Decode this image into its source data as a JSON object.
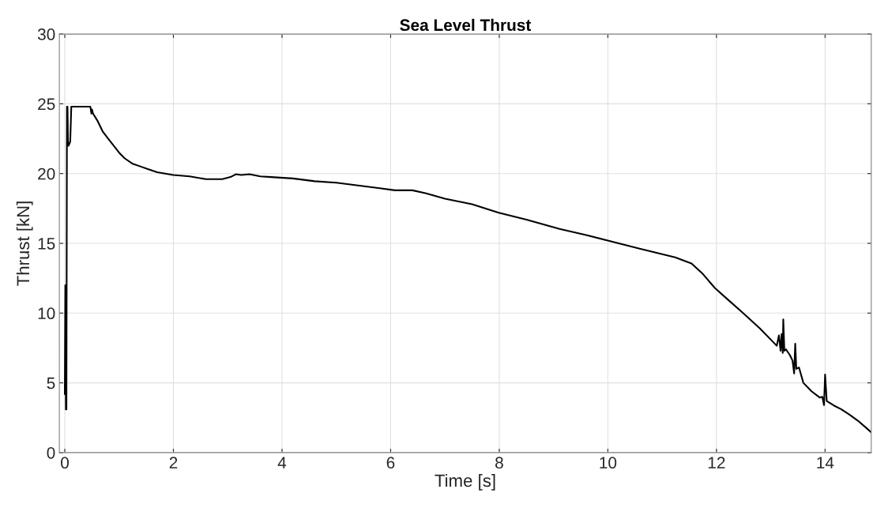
{
  "chart_data": {
    "type": "line",
    "title": "Sea Level Thrust",
    "xlabel": "Time [s]",
    "ylabel": "Thrust [kN]",
    "x": [
      0.0,
      0.01,
      0.02,
      0.025,
      0.03,
      0.04,
      0.05,
      0.06,
      0.07,
      0.1,
      0.12,
      0.14,
      0.3,
      0.47,
      0.49,
      0.5,
      0.52,
      0.6,
      0.7,
      0.8,
      0.9,
      1.0,
      1.1,
      1.25,
      1.4,
      1.55,
      1.7,
      1.85,
      2.0,
      2.3,
      2.6,
      2.9,
      3.05,
      3.15,
      3.25,
      3.4,
      3.6,
      3.8,
      4.2,
      4.6,
      5.0,
      5.4,
      5.8,
      6.08,
      6.4,
      6.64,
      7.0,
      7.5,
      7.99,
      8.5,
      9.11,
      9.6,
      10.0,
      10.6,
      11.24,
      11.54,
      11.75,
      11.97,
      12.2,
      12.47,
      12.8,
      13.11,
      13.15,
      13.18,
      13.2,
      13.22,
      13.23,
      13.25,
      13.28,
      13.35,
      13.4,
      13.43,
      13.45,
      13.47,
      13.52,
      13.6,
      13.75,
      13.9,
      13.95,
      13.97,
      13.98,
      14.0,
      14.03,
      14.16,
      14.3,
      14.45,
      14.6,
      14.75,
      14.85
    ],
    "series": [
      {
        "color": "#000000",
        "values": [
          4.2,
          12.0,
          3.1,
          10.0,
          3.1,
          24.8,
          24.8,
          22.0,
          22.0,
          22.3,
          24.8,
          24.8,
          24.8,
          24.8,
          24.3,
          24.6,
          24.3,
          23.8,
          23.0,
          22.5,
          22.0,
          21.5,
          21.1,
          20.7,
          20.5,
          20.3,
          20.1,
          20.0,
          19.9,
          19.8,
          19.6,
          19.6,
          19.75,
          19.95,
          19.9,
          19.95,
          19.8,
          19.75,
          19.65,
          19.45,
          19.35,
          19.15,
          18.95,
          18.8,
          18.8,
          18.6,
          18.2,
          17.8,
          17.2,
          16.7,
          16.03,
          15.6,
          15.2,
          14.6,
          14.0,
          13.56,
          12.8,
          11.8,
          11.0,
          10.07,
          8.9,
          7.66,
          8.4,
          7.3,
          8.5,
          7.15,
          9.55,
          7.3,
          7.4,
          7.0,
          6.6,
          5.68,
          7.81,
          6.0,
          6.1,
          5.0,
          4.4,
          3.95,
          4.0,
          3.6,
          3.41,
          5.6,
          3.7,
          3.38,
          3.1,
          2.72,
          2.3,
          1.8,
          1.45
        ]
      }
    ],
    "xlim": [
      -0.1,
      14.85
    ],
    "ylim": [
      0,
      30
    ],
    "xticks": [
      0,
      2,
      4,
      6,
      8,
      10,
      12,
      14
    ],
    "yticks": [
      0,
      5,
      10,
      15,
      20,
      25,
      30
    ],
    "grid": true,
    "marker": "none",
    "line_style": "solid"
  }
}
